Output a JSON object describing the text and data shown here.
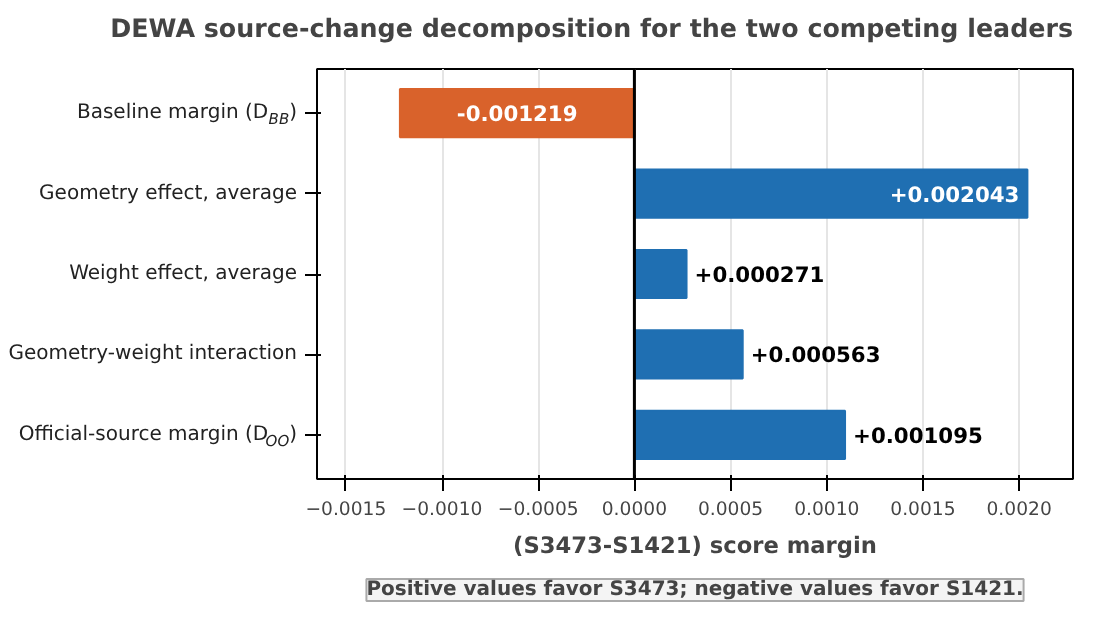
{
  "chart_data": {
    "type": "bar",
    "orientation": "horizontal",
    "title": "DEWA source-change decomposition for the two competing leaders",
    "xlabel": "(S3473-S1421) score margin",
    "categories": [
      "Baseline margin (D$_{BB}$)",
      "Geometry effect, average",
      "Weight effect, average",
      "Geometry-weight interaction",
      "Official-source margin (D$_{OO}$)"
    ],
    "values": [
      -0.001219,
      0.002043,
      0.000271,
      0.000563,
      0.001095
    ],
    "colors": [
      "#d9622b",
      "#1f6fb2",
      "#1f6fb2",
      "#1f6fb2",
      "#1f6fb2"
    ],
    "value_labels": [
      "-0.001219",
      "+0.002043",
      "+0.000271",
      "+0.000563",
      "+0.001095"
    ],
    "xlim": [
      -0.00165,
      0.00228
    ],
    "xticks": [
      -0.0015,
      {
        "value": -0.001,
        "label": "−0.0010"
      },
      -0.0005,
      {
        "value": 0,
        "label": "0.0000"
      },
      0.0005,
      {
        "value": 0.001,
        "label": "0.0010"
      },
      0.0015,
      {
        "value": 0.002,
        "label": "0.0020"
      }
    ],
    "ref_lines": [
      {
        "axis": "x",
        "value": 0,
        "color": "#000000"
      }
    ],
    "grid": "x",
    "annotations": [
      "Positive values favor S3473; negative values favor S1421."
    ]
  }
}
